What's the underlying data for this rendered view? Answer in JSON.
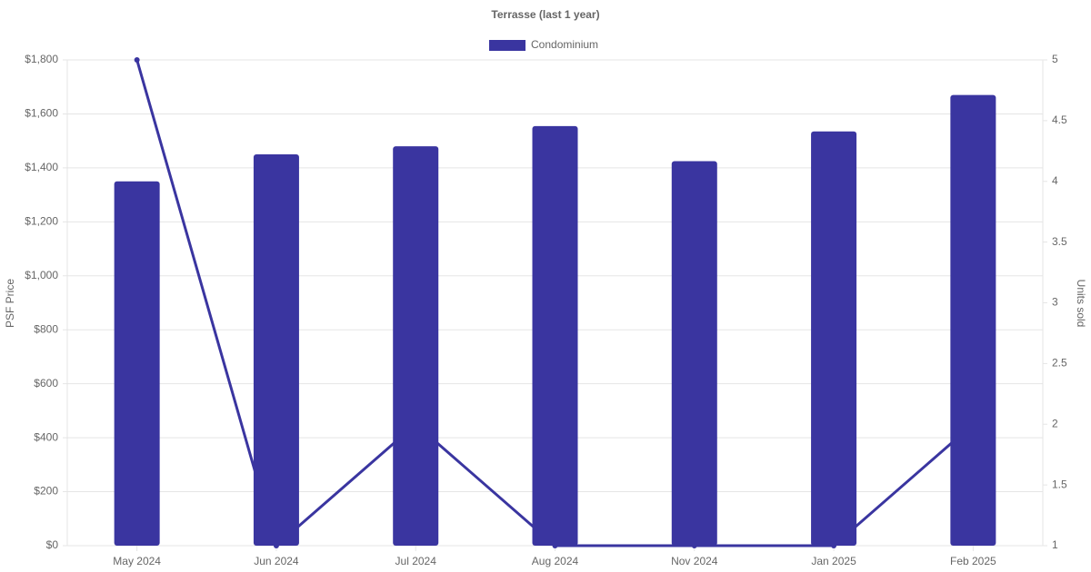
{
  "chart_data": {
    "type": "bar_line",
    "title": "Terrasse (last 1 year)",
    "categories": [
      "May 2024",
      "Jun 2024",
      "Jul 2024",
      "Aug 2024",
      "Nov 2024",
      "Jan 2025",
      "Feb 2025"
    ],
    "series": [
      {
        "name": "Condominium",
        "type": "bar",
        "color": "#3a35a0",
        "values": [
          1350,
          1450,
          1480,
          1555,
          1425,
          1535,
          1670
        ]
      },
      {
        "type": "line",
        "axis": "y2",
        "color": "#3a35a0",
        "values": [
          5,
          1,
          2,
          1,
          1,
          1,
          2
        ]
      }
    ],
    "y_label": "PSF Price",
    "y2_label": "Units sold",
    "ylim": [
      0,
      1800
    ],
    "yticks": [
      {
        "value": 0,
        "label": "$0"
      },
      {
        "value": 200,
        "label": "$200"
      },
      {
        "value": 400,
        "label": "$400"
      },
      {
        "value": 600,
        "label": "$600"
      },
      {
        "value": 800,
        "label": "$800"
      },
      {
        "value": 1000,
        "label": "$1,000"
      },
      {
        "value": 1200,
        "label": "$1,200"
      },
      {
        "value": 1400,
        "label": "$1,400"
      },
      {
        "value": 1600,
        "label": "$1,600"
      },
      {
        "value": 1800,
        "label": "$1,800"
      }
    ],
    "y2lim": [
      1,
      5
    ],
    "y2ticks": [
      1,
      1.5,
      2,
      2.5,
      3,
      3.5,
      4,
      4.5,
      5
    ],
    "grid": true
  }
}
